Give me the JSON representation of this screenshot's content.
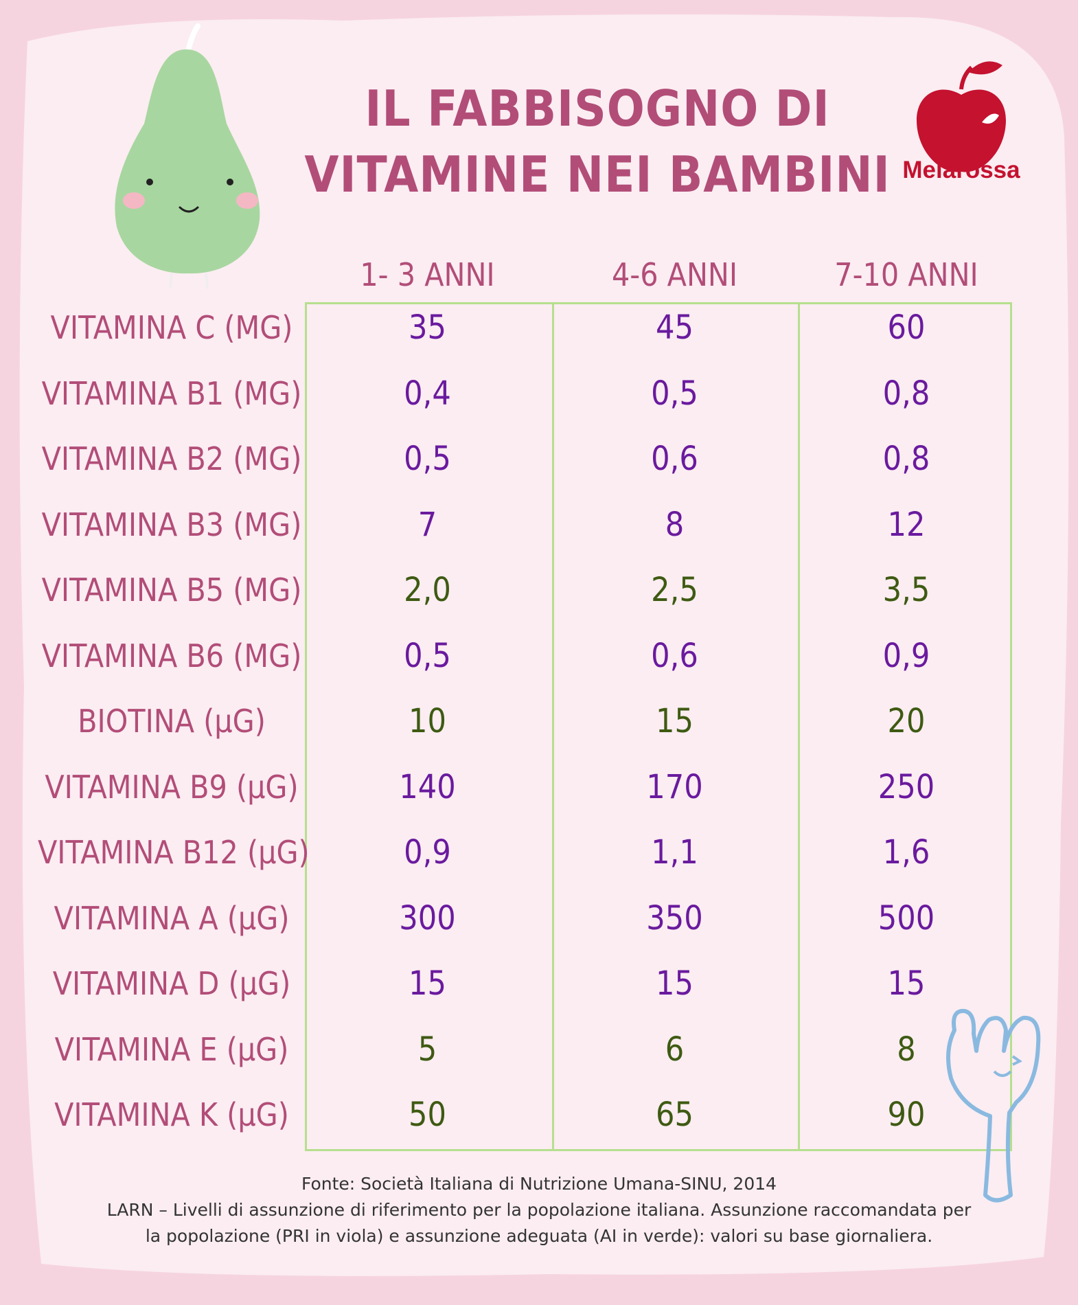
{
  "title_line1": "IL FABBISOGNO DI",
  "title_line2": "VITAMINE NEI BAMBINI",
  "logo_text": "Melarossa",
  "columns": [
    "1- 3 ANNI",
    "4-6 ANNI",
    "7-10 ANNI"
  ],
  "rows": [
    {
      "label": "VITAMINA C (MG)",
      "values": [
        "35",
        "45",
        "60"
      ],
      "type": "pri"
    },
    {
      "label": "VITAMINA B1 (MG)",
      "values": [
        "0,4",
        "0,5",
        "0,8"
      ],
      "type": "pri"
    },
    {
      "label": "VITAMINA B2 (MG)",
      "values": [
        "0,5",
        "0,6",
        "0,8"
      ],
      "type": "pri"
    },
    {
      "label": "VITAMINA B3 (MG)",
      "values": [
        "7",
        "8",
        "12"
      ],
      "type": "pri"
    },
    {
      "label": "VITAMINA B5 (MG)",
      "values": [
        "2,0",
        "2,5",
        "3,5"
      ],
      "type": "ai"
    },
    {
      "label": "VITAMINA B6 (MG)",
      "values": [
        "0,5",
        "0,6",
        "0,9"
      ],
      "type": "pri"
    },
    {
      "label": "BIOTINA (µG)",
      "values": [
        "10",
        "15",
        "20"
      ],
      "type": "ai"
    },
    {
      "label": "VITAMINA B9 (µG)",
      "values": [
        "140",
        "170",
        "250"
      ],
      "type": "pri"
    },
    {
      "label": "VITAMINA B12 (µG)",
      "values": [
        "0,9",
        "1,1",
        "1,6"
      ],
      "type": "pri"
    },
    {
      "label": "VITAMINA A (µG)",
      "values": [
        "300",
        "350",
        "500"
      ],
      "type": "pri"
    },
    {
      "label": "VITAMINA D (µG)",
      "values": [
        "15",
        "15",
        "15"
      ],
      "type": "pri"
    },
    {
      "label": "VITAMINA E (µG)",
      "values": [
        "5",
        "6",
        "8"
      ],
      "type": "ai"
    },
    {
      "label": "VITAMINA K (µG)",
      "values": [
        "50",
        "65",
        "90"
      ],
      "type": "ai"
    }
  ],
  "footer": {
    "line1": "Fonte: Società Italiana di Nutrizione Umana-SINU, 2014",
    "line2": "LARN – Livelli di assunzione di riferimento per la popolazione italiana. Assunzione raccomandata per",
    "line3": "la popolazione (PRI in viola) e assunzione adeguata (AI in verde): valori su base giornaliera."
  },
  "colors": {
    "pri": "#6a1a9e",
    "ai": "#3e5a12",
    "label": "#b24d78",
    "grid": "#b6df8e",
    "brand": "#c4122f"
  },
  "icons": [
    "pear-character-icon",
    "apple-logo-icon",
    "fork-character-icon"
  ]
}
